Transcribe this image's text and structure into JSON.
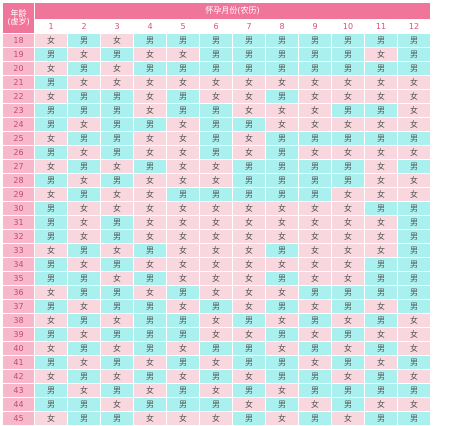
{
  "corner": {
    "line1": "年龄",
    "line2": "(虚岁)"
  },
  "title": "怀孕月份(农历)",
  "months": [
    "1",
    "2",
    "3",
    "4",
    "5",
    "6",
    "7",
    "8",
    "9",
    "10",
    "11",
    "12"
  ],
  "colors": {
    "boy_cell": "#aaf0ee",
    "girl_cell": "#f9d7de",
    "header": "#f0759a",
    "age_cell": "#f7b8cb"
  },
  "rows": [
    {
      "age": "18",
      "cells": [
        "女",
        "男",
        "女",
        "男",
        "男",
        "男",
        "男",
        "男",
        "男",
        "男",
        "男",
        "男"
      ]
    },
    {
      "age": "19",
      "cells": [
        "男",
        "女",
        "男",
        "女",
        "女",
        "男",
        "男",
        "男",
        "男",
        "男",
        "女",
        "男"
      ]
    },
    {
      "age": "20",
      "cells": [
        "女",
        "男",
        "女",
        "男",
        "男",
        "男",
        "男",
        "男",
        "男",
        "男",
        "男",
        "男"
      ]
    },
    {
      "age": "21",
      "cells": [
        "男",
        "女",
        "女",
        "女",
        "女",
        "女",
        "女",
        "女",
        "女",
        "女",
        "女",
        "女"
      ]
    },
    {
      "age": "22",
      "cells": [
        "女",
        "男",
        "男",
        "女",
        "男",
        "女",
        "女",
        "男",
        "女",
        "女",
        "女",
        "女"
      ]
    },
    {
      "age": "23",
      "cells": [
        "男",
        "男",
        "男",
        "女",
        "男",
        "男",
        "女",
        "女",
        "女",
        "男",
        "男",
        "女"
      ]
    },
    {
      "age": "24",
      "cells": [
        "男",
        "女",
        "男",
        "男",
        "女",
        "男",
        "男",
        "女",
        "女",
        "女",
        "女",
        "女"
      ]
    },
    {
      "age": "25",
      "cells": [
        "女",
        "男",
        "男",
        "女",
        "女",
        "男",
        "女",
        "男",
        "男",
        "男",
        "男",
        "男"
      ]
    },
    {
      "age": "26",
      "cells": [
        "男",
        "女",
        "男",
        "女",
        "女",
        "男",
        "女",
        "男",
        "女",
        "女",
        "女",
        "女"
      ]
    },
    {
      "age": "27",
      "cells": [
        "女",
        "男",
        "女",
        "男",
        "女",
        "女",
        "男",
        "男",
        "男",
        "男",
        "女",
        "男"
      ]
    },
    {
      "age": "28",
      "cells": [
        "男",
        "女",
        "男",
        "女",
        "女",
        "女",
        "男",
        "男",
        "男",
        "男",
        "女",
        "女"
      ]
    },
    {
      "age": "29",
      "cells": [
        "女",
        "男",
        "女",
        "女",
        "男",
        "男",
        "男",
        "男",
        "男",
        "女",
        "女",
        "女"
      ]
    },
    {
      "age": "30",
      "cells": [
        "男",
        "女",
        "女",
        "女",
        "女",
        "女",
        "女",
        "女",
        "女",
        "女",
        "男",
        "男"
      ]
    },
    {
      "age": "31",
      "cells": [
        "男",
        "女",
        "男",
        "女",
        "女",
        "女",
        "女",
        "女",
        "女",
        "女",
        "女",
        "男"
      ]
    },
    {
      "age": "32",
      "cells": [
        "男",
        "女",
        "男",
        "女",
        "女",
        "女",
        "女",
        "女",
        "女",
        "女",
        "女",
        "男"
      ]
    },
    {
      "age": "33",
      "cells": [
        "女",
        "男",
        "女",
        "男",
        "女",
        "女",
        "女",
        "男",
        "女",
        "女",
        "女",
        "男"
      ]
    },
    {
      "age": "34",
      "cells": [
        "男",
        "女",
        "男",
        "女",
        "女",
        "女",
        "女",
        "女",
        "女",
        "女",
        "男",
        "男"
      ]
    },
    {
      "age": "35",
      "cells": [
        "男",
        "男",
        "女",
        "男",
        "女",
        "女",
        "女",
        "男",
        "女",
        "女",
        "男",
        "男"
      ]
    },
    {
      "age": "36",
      "cells": [
        "女",
        "男",
        "男",
        "女",
        "男",
        "女",
        "女",
        "女",
        "男",
        "男",
        "男",
        "男"
      ]
    },
    {
      "age": "37",
      "cells": [
        "男",
        "女",
        "男",
        "男",
        "女",
        "男",
        "女",
        "男",
        "女",
        "男",
        "女",
        "男"
      ]
    },
    {
      "age": "38",
      "cells": [
        "女",
        "男",
        "女",
        "男",
        "男",
        "女",
        "男",
        "女",
        "男",
        "女",
        "男",
        "女"
      ]
    },
    {
      "age": "39",
      "cells": [
        "男",
        "女",
        "男",
        "男",
        "男",
        "女",
        "女",
        "男",
        "女",
        "男",
        "女",
        "女"
      ]
    },
    {
      "age": "40",
      "cells": [
        "女",
        "男",
        "女",
        "男",
        "女",
        "男",
        "男",
        "女",
        "男",
        "女",
        "男",
        "女"
      ]
    },
    {
      "age": "41",
      "cells": [
        "男",
        "女",
        "男",
        "女",
        "男",
        "女",
        "男",
        "男",
        "女",
        "男",
        "女",
        "男"
      ]
    },
    {
      "age": "42",
      "cells": [
        "女",
        "男",
        "女",
        "男",
        "女",
        "男",
        "女",
        "男",
        "男",
        "女",
        "男",
        "女"
      ]
    },
    {
      "age": "43",
      "cells": [
        "男",
        "女",
        "男",
        "女",
        "男",
        "女",
        "男",
        "女",
        "男",
        "男",
        "男",
        "男"
      ]
    },
    {
      "age": "44",
      "cells": [
        "男",
        "男",
        "女",
        "男",
        "男",
        "男",
        "女",
        "男",
        "女",
        "男",
        "女",
        "女"
      ]
    },
    {
      "age": "45",
      "cells": [
        "女",
        "男",
        "男",
        "女",
        "女",
        "女",
        "男",
        "女",
        "男",
        "女",
        "男",
        "男"
      ]
    }
  ]
}
